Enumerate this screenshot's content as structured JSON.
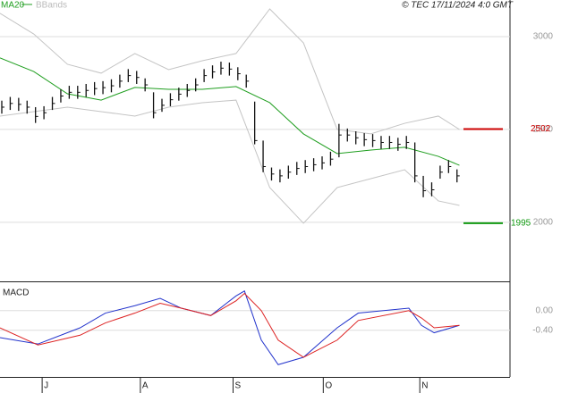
{
  "chart_data": [
    {
      "type": "ohlc",
      "annotation": "© TEC 17/11/2024 4:0 GMT",
      "xlim": [
        0,
        121
      ],
      "ylim": [
        1682,
        3197
      ],
      "yticks": [
        2000,
        2500,
        3000
      ],
      "grid": true,
      "bar_color": "#111111",
      "x": [
        0,
        2,
        4,
        6,
        8,
        10,
        12,
        14,
        16,
        18,
        20,
        22,
        24,
        26,
        28,
        30,
        32,
        34,
        36,
        38,
        40,
        42,
        44,
        46,
        48,
        50,
        52,
        54,
        56,
        58,
        60,
        62,
        64,
        66,
        68,
        70,
        72,
        74,
        76,
        78,
        80,
        82,
        84,
        86,
        88,
        90,
        92,
        94,
        96,
        98,
        100,
        102,
        104,
        106,
        108
      ],
      "high": [
        2655,
        2675,
        2670,
        2655,
        2620,
        2625,
        2675,
        2715,
        2735,
        2735,
        2745,
        2755,
        2760,
        2770,
        2795,
        2825,
        2815,
        2775,
        2700,
        2665,
        2695,
        2725,
        2745,
        2775,
        2825,
        2845,
        2865,
        2860,
        2835,
        2795,
        2650,
        2440,
        2295,
        2285,
        2305,
        2325,
        2335,
        2345,
        2355,
        2380,
        2530,
        2505,
        2490,
        2480,
        2475,
        2465,
        2465,
        2455,
        2465,
        2430,
        2250,
        2215,
        2305,
        2335,
        2285
      ],
      "low": [
        2585,
        2605,
        2600,
        2585,
        2535,
        2555,
        2605,
        2645,
        2665,
        2665,
        2675,
        2685,
        2690,
        2700,
        2725,
        2755,
        2745,
        2705,
        2560,
        2595,
        2625,
        2655,
        2675,
        2705,
        2755,
        2775,
        2795,
        2790,
        2765,
        2725,
        2420,
        2270,
        2225,
        2215,
        2235,
        2255,
        2265,
        2275,
        2285,
        2305,
        2350,
        2435,
        2420,
        2410,
        2405,
        2395,
        2395,
        2385,
        2395,
        2215,
        2135,
        2140,
        2235,
        2265,
        2215
      ],
      "close": [
        2620,
        2640,
        2635,
        2620,
        2570,
        2590,
        2640,
        2680,
        2700,
        2700,
        2710,
        2720,
        2725,
        2735,
        2760,
        2790,
        2780,
        2740,
        2590,
        2630,
        2660,
        2690,
        2710,
        2740,
        2790,
        2810,
        2830,
        2825,
        2800,
        2760,
        2440,
        2300,
        2260,
        2250,
        2270,
        2290,
        2300,
        2310,
        2320,
        2340,
        2470,
        2470,
        2455,
        2445,
        2440,
        2430,
        2430,
        2420,
        2430,
        2250,
        2170,
        2175,
        2270,
        2300,
        2250
      ],
      "series": [
        {
          "name": "MA20",
          "color": "#1f9e1f",
          "x": [
            0,
            8,
            16,
            24,
            32,
            40,
            48,
            56,
            64,
            72,
            80,
            88,
            96,
            104,
            109
          ],
          "values": [
            2885,
            2812,
            2692,
            2658,
            2726,
            2716,
            2716,
            2731,
            2644,
            2476,
            2370,
            2389,
            2404,
            2355,
            2307
          ]
        },
        {
          "name": "BBands",
          "color": "#c4c4c4",
          "x": [
            0,
            8,
            16,
            24,
            32,
            40,
            48,
            56,
            64,
            72,
            80,
            88,
            96,
            104,
            109
          ],
          "upper": [
            3125,
            3014,
            2851,
            2803,
            2909,
            2822,
            2870,
            2909,
            3149,
            2966,
            2500,
            2476,
            2533,
            2572,
            2500
          ],
          "lower": [
            2572,
            2596,
            2620,
            2596,
            2572,
            2620,
            2644,
            2658,
            2187,
            1995,
            2187,
            2235,
            2283,
            2115,
            2091
          ]
        }
      ],
      "levels": [
        {
          "value": 2502,
          "color": "#cc0000"
        },
        {
          "value": 1995,
          "color": "#119911"
        }
      ]
    },
    {
      "type": "line",
      "title": "MACD",
      "xlim": [
        0,
        121
      ],
      "ylim": [
        -1.35,
        0.56
      ],
      "yticks": [
        {
          "value": 0,
          "label": "0.00"
        },
        {
          "value": -0.4,
          "label": "-0.40"
        }
      ],
      "xticks": [
        {
          "value": 10,
          "label": "J"
        },
        {
          "value": 33.3,
          "label": "A"
        },
        {
          "value": 55.3,
          "label": "S"
        },
        {
          "value": 76.7,
          "label": "O"
        },
        {
          "value": 99.6,
          "label": "N"
        }
      ],
      "x": [
        0,
        9,
        19,
        25,
        32,
        38,
        43,
        50,
        56,
        58,
        62,
        66,
        72,
        80,
        85,
        97,
        100,
        103,
        109
      ],
      "series": [
        {
          "color": "#2233cc",
          "values": [
            -0.55,
            -0.68,
            -0.35,
            -0.05,
            0.1,
            0.25,
            0.05,
            -0.1,
            0.3,
            0.4,
            -0.6,
            -1.1,
            -0.95,
            -0.35,
            -0.05,
            0.05,
            -0.3,
            -0.45,
            -0.3
          ]
        },
        {
          "color": "#dd2222",
          "values": [
            -0.35,
            -0.7,
            -0.5,
            -0.25,
            -0.05,
            0.15,
            0.05,
            -0.1,
            0.2,
            0.35,
            0,
            -0.6,
            -0.95,
            -0.6,
            -0.2,
            0,
            -0.15,
            -0.35,
            -0.3
          ]
        }
      ]
    }
  ]
}
